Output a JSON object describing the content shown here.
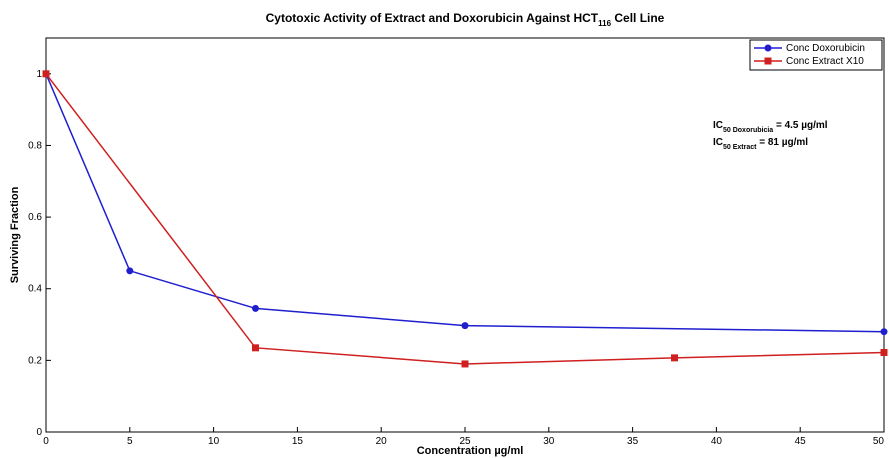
{
  "chart_data": {
    "type": "line",
    "title": {
      "main": "Cytotoxic Activity of Extract and Doxorubicin Against HCT",
      "sub": "116",
      "tail": " Cell Line"
    },
    "x_label": "Concentration µg/ml",
    "y_label": "Surviving Fraction",
    "xlim": [
      0,
      50
    ],
    "xticks": [
      0,
      5,
      10,
      15,
      20,
      25,
      30,
      35,
      40,
      45,
      50
    ],
    "ylim": [
      0,
      1.1
    ],
    "yticks": [
      0,
      0.2,
      0.4,
      0.6,
      0.8,
      1
    ],
    "legend": "upper right",
    "series": [
      {
        "name": "Conc Doxorubicin",
        "color": "#1f1fd0",
        "marker": "circle",
        "x": [
          0,
          5,
          12.5,
          25,
          50
        ],
        "values": [
          1,
          0.45,
          0.345,
          0.297,
          0.28
        ]
      },
      {
        "name": "Conc Extract X10",
        "color": "#d01f1f",
        "marker": "square",
        "x": [
          0,
          12.5,
          25,
          37.5,
          50
        ],
        "values": [
          1,
          0.235,
          0.19,
          0.207,
          0.222
        ]
      }
    ],
    "annotations": [
      {
        "main": "IC",
        "sub": "50 Doxorubicia",
        "tail": " = 4.5 µg/ml"
      },
      {
        "main": "IC",
        "sub": "50 Extract",
        "tail": " = 81 µg/ml"
      }
    ]
  }
}
